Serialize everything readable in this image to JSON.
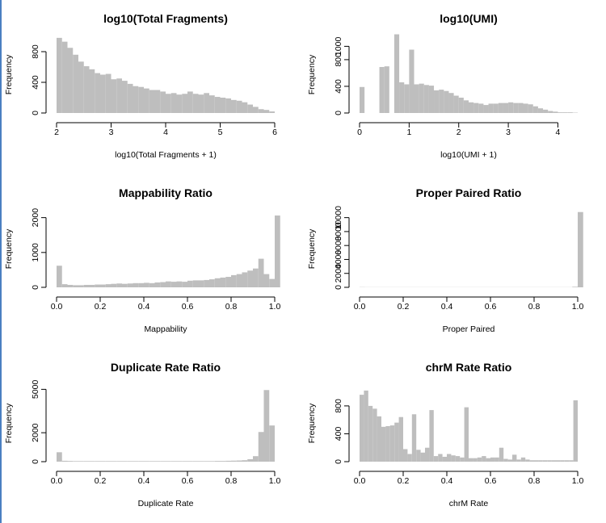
{
  "colors": {
    "bar": "#bebebe",
    "axis": "#000000",
    "background": "#ffffff"
  },
  "chart_data": [
    {
      "type": "bar",
      "title": "log10(Total Fragments)",
      "xlabel": "log10(Total Fragments + 1)",
      "ylabel": "Frequency",
      "xlim": [
        2,
        6
      ],
      "ylim": [
        0,
        1000
      ],
      "xticks": [
        2,
        3,
        4,
        5,
        6
      ],
      "xtick_labels": [
        "2",
        "3",
        "4",
        "5",
        "6"
      ],
      "yticks": [
        0,
        400,
        800
      ],
      "ytick_labels": [
        "0",
        "400",
        "800"
      ],
      "bin_start": 2.0,
      "bin_width": 0.1,
      "values": [
        980,
        930,
        850,
        760,
        670,
        610,
        570,
        520,
        500,
        510,
        440,
        450,
        420,
        380,
        350,
        340,
        320,
        300,
        300,
        280,
        250,
        260,
        240,
        250,
        280,
        250,
        240,
        260,
        230,
        210,
        200,
        190,
        170,
        160,
        140,
        110,
        80,
        50,
        40,
        20
      ]
    },
    {
      "type": "bar",
      "title": "log10(UMI)",
      "xlabel": "log10(UMI + 1)",
      "ylabel": "Frequency",
      "xlim": [
        0,
        4.4
      ],
      "ylim": [
        0,
        1150
      ],
      "xticks": [
        0,
        1,
        2,
        3,
        4
      ],
      "xtick_labels": [
        "0",
        "1",
        "2",
        "3",
        "4"
      ],
      "yticks": [
        0,
        400,
        800,
        1000
      ],
      "ytick_labels": [
        "0",
        "400",
        "800",
        "1000"
      ],
      "bin_start": 0.0,
      "bin_width": 0.1,
      "values": [
        390,
        0,
        0,
        0,
        690,
        700,
        0,
        1180,
        460,
        430,
        950,
        430,
        440,
        420,
        410,
        340,
        350,
        330,
        300,
        260,
        230,
        190,
        160,
        150,
        140,
        120,
        140,
        140,
        150,
        150,
        160,
        150,
        150,
        140,
        130,
        100,
        70,
        50,
        30,
        20,
        10,
        10,
        10,
        5
      ]
    },
    {
      "type": "bar",
      "title": "Mappability Ratio",
      "xlabel": "Mappability",
      "ylabel": "Frequency",
      "xlim": [
        0,
        1
      ],
      "ylim": [
        0,
        2200
      ],
      "xticks": [
        0,
        0.2,
        0.4,
        0.6,
        0.8,
        1.0
      ],
      "xtick_labels": [
        "0.0",
        "0.2",
        "0.4",
        "0.6",
        "0.8",
        "1.0"
      ],
      "yticks": [
        0,
        1000,
        2000
      ],
      "ytick_labels": [
        "0",
        "1000",
        "2000"
      ],
      "bin_start": 0.0,
      "bin_width": 0.025,
      "values": [
        620,
        90,
        70,
        60,
        60,
        70,
        70,
        80,
        80,
        90,
        100,
        110,
        100,
        110,
        120,
        120,
        130,
        120,
        140,
        150,
        170,
        160,
        170,
        160,
        190,
        200,
        200,
        210,
        230,
        260,
        280,
        300,
        350,
        380,
        430,
        480,
        540,
        820,
        380,
        240,
        2060
      ]
    },
    {
      "type": "bar",
      "title": "Proper Paired Ratio",
      "xlabel": "Proper Paired",
      "ylabel": "Frequency",
      "xlim": [
        0,
        1
      ],
      "ylim": [
        0,
        11000
      ],
      "xticks": [
        0,
        0.2,
        0.4,
        0.6,
        0.8,
        1.0
      ],
      "xtick_labels": [
        "0.0",
        "0.2",
        "0.4",
        "0.6",
        "0.8",
        "1.0"
      ],
      "yticks": [
        0,
        2000,
        4000,
        6000,
        8000,
        10000
      ],
      "ytick_labels": [
        "0",
        "2000",
        "4000",
        "6000",
        "8000",
        "10000"
      ],
      "bin_start": 0.0,
      "bin_width": 0.025,
      "values": [
        30,
        20,
        20,
        20,
        20,
        20,
        20,
        20,
        20,
        20,
        20,
        20,
        20,
        20,
        20,
        20,
        20,
        20,
        20,
        20,
        20,
        20,
        20,
        20,
        20,
        20,
        20,
        20,
        20,
        20,
        20,
        20,
        20,
        20,
        20,
        20,
        20,
        20,
        20,
        80,
        10800
      ]
    },
    {
      "type": "bar",
      "title": "Duplicate Rate Ratio",
      "xlabel": "Duplicate Rate",
      "ylabel": "Frequency",
      "xlim": [
        0,
        1
      ],
      "ylim": [
        0,
        5300
      ],
      "xticks": [
        0,
        0.2,
        0.4,
        0.6,
        0.8,
        1.0
      ],
      "xtick_labels": [
        "0.0",
        "0.2",
        "0.4",
        "0.6",
        "0.8",
        "1.0"
      ],
      "yticks": [
        0,
        2000,
        5000
      ],
      "ytick_labels": [
        "0",
        "2000",
        "5000"
      ],
      "bin_start": 0.0,
      "bin_width": 0.025,
      "values": [
        650,
        60,
        50,
        40,
        40,
        40,
        40,
        40,
        40,
        40,
        40,
        40,
        40,
        40,
        40,
        40,
        40,
        40,
        40,
        40,
        40,
        40,
        40,
        40,
        40,
        40,
        40,
        40,
        40,
        50,
        50,
        60,
        70,
        80,
        100,
        170,
        380,
        2050,
        4950,
        2500
      ]
    },
    {
      "type": "bar",
      "title": "chrM Rate Ratio",
      "xlabel": "chrM Rate",
      "ylabel": "Frequency",
      "xlim": [
        0,
        1
      ],
      "ylim": [
        0,
        1100
      ],
      "xticks": [
        0,
        0.2,
        0.4,
        0.6,
        0.8,
        1.0
      ],
      "xtick_labels": [
        "0.0",
        "0.2",
        "0.4",
        "0.6",
        "0.8",
        "1.0"
      ],
      "yticks": [
        0,
        400,
        800
      ],
      "ytick_labels": [
        "0",
        "400",
        "800"
      ],
      "bin_start": 0.0,
      "bin_width": 0.02,
      "values": [
        960,
        1020,
        800,
        760,
        650,
        500,
        510,
        520,
        560,
        640,
        180,
        110,
        680,
        170,
        130,
        200,
        740,
        80,
        110,
        70,
        110,
        90,
        80,
        60,
        780,
        50,
        50,
        60,
        80,
        50,
        60,
        60,
        200,
        40,
        30,
        100,
        30,
        60,
        30,
        20,
        20,
        20,
        20,
        20,
        20,
        20,
        20,
        20,
        20,
        880
      ]
    }
  ]
}
